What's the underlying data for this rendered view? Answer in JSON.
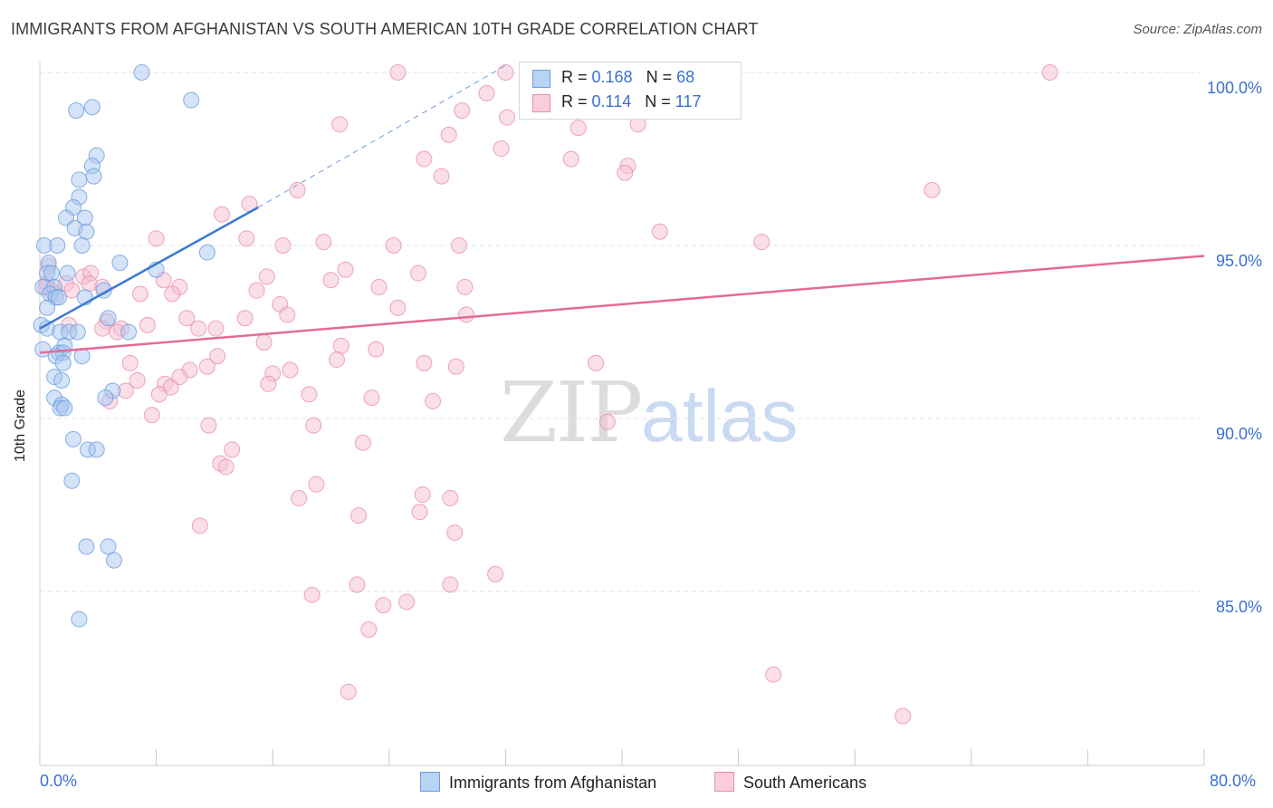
{
  "title": "IMMIGRANTS FROM AFGHANISTAN VS SOUTH AMERICAN 10TH GRADE CORRELATION CHART",
  "source": "Source: ZipAtlas.com",
  "watermark": {
    "zip": "ZIP",
    "atlas": "atlas"
  },
  "legend_top": {
    "rows": [
      {
        "r_label": "R = ",
        "r_value": "0.168",
        "n_label": "N = ",
        "n_value": "68"
      },
      {
        "r_label": "R = ",
        "r_value": "0.114",
        "n_label": "N = ",
        "n_value": "117"
      }
    ]
  },
  "legend_bottom": {
    "items": [
      {
        "label": "Immigrants from Afghanistan"
      },
      {
        "label": "South Americans"
      }
    ]
  },
  "colors": {
    "blue_fill": "#a9c8f0",
    "blue_stroke": "#6a9de0",
    "blue_line": "#3a78d6",
    "pink_fill": "#f6bfd1",
    "pink_stroke": "#e88fae",
    "pink_line": "#e36b97",
    "grid": "#e6e6e6",
    "axis_label": "#3b6fd0"
  },
  "chart_data": {
    "type": "scatter",
    "title": "IMMIGRANTS FROM AFGHANISTAN VS SOUTH AMERICAN 10TH GRADE CORRELATION CHART",
    "xlabel": "",
    "ylabel": "10th Grade",
    "xlim": [
      0,
      80
    ],
    "ylim": [
      80.5,
      100.6
    ],
    "x_tick_labels": [
      "0.0%",
      "80.0%"
    ],
    "y_ticks": [
      85,
      90,
      95,
      100
    ],
    "y_tick_labels": [
      "85.0%",
      "90.0%",
      "95.0%",
      "100.0%"
    ],
    "grid": true,
    "legend_placement": "top-center",
    "series": [
      {
        "name": "Immigrants from Afghanistan",
        "r": 0.168,
        "n": 68,
        "trend": {
          "x": [
            0,
            15.0
          ],
          "y": [
            92.6,
            96.1
          ],
          "dashed_extension_to": [
            32.0,
            100.2
          ]
        },
        "points": [
          [
            7.0,
            100.0
          ],
          [
            10.4,
            99.2
          ],
          [
            3.6,
            99.0
          ],
          [
            2.5,
            98.9
          ],
          [
            3.9,
            97.6
          ],
          [
            3.6,
            97.3
          ],
          [
            3.7,
            97.0
          ],
          [
            2.7,
            96.9
          ],
          [
            2.7,
            96.4
          ],
          [
            2.3,
            96.1
          ],
          [
            1.8,
            95.8
          ],
          [
            3.1,
            95.8
          ],
          [
            2.4,
            95.5
          ],
          [
            3.2,
            95.4
          ],
          [
            0.3,
            95.0
          ],
          [
            1.2,
            95.0
          ],
          [
            2.9,
            95.0
          ],
          [
            11.5,
            94.8
          ],
          [
            0.6,
            94.5
          ],
          [
            5.5,
            94.5
          ],
          [
            0.5,
            94.2
          ],
          [
            0.8,
            94.2
          ],
          [
            1.9,
            94.2
          ],
          [
            8.0,
            94.3
          ],
          [
            0.2,
            93.8
          ],
          [
            1.0,
            93.8
          ],
          [
            4.4,
            93.7
          ],
          [
            0.7,
            93.6
          ],
          [
            1.1,
            93.5
          ],
          [
            1.3,
            93.5
          ],
          [
            3.1,
            93.5
          ],
          [
            0.5,
            93.2
          ],
          [
            4.7,
            92.9
          ],
          [
            0.1,
            92.7
          ],
          [
            0.5,
            92.6
          ],
          [
            1.4,
            92.5
          ],
          [
            2.0,
            92.5
          ],
          [
            2.6,
            92.5
          ],
          [
            6.1,
            92.5
          ],
          [
            1.7,
            92.1
          ],
          [
            0.2,
            92.0
          ],
          [
            1.3,
            91.9
          ],
          [
            1.6,
            91.9
          ],
          [
            1.1,
            91.8
          ],
          [
            2.9,
            91.8
          ],
          [
            1.6,
            91.6
          ],
          [
            1.0,
            91.2
          ],
          [
            1.5,
            91.1
          ],
          [
            5.0,
            90.8
          ],
          [
            4.5,
            90.6
          ],
          [
            1.0,
            90.6
          ],
          [
            1.5,
            90.4
          ],
          [
            1.4,
            90.3
          ],
          [
            1.7,
            90.3
          ],
          [
            2.3,
            89.4
          ],
          [
            3.3,
            89.1
          ],
          [
            3.9,
            89.1
          ],
          [
            2.2,
            88.2
          ],
          [
            3.2,
            86.3
          ],
          [
            4.7,
            86.3
          ],
          [
            5.1,
            85.9
          ],
          [
            2.7,
            84.2
          ]
        ]
      },
      {
        "name": "South Americans",
        "r": 0.114,
        "n": 117,
        "trend": {
          "x": [
            0,
            80
          ],
          "y": [
            91.9,
            94.7
          ]
        },
        "points": [
          [
            24.6,
            100.0
          ],
          [
            32.0,
            100.0
          ],
          [
            69.4,
            100.0
          ],
          [
            38.6,
            99.9
          ],
          [
            30.7,
            99.4
          ],
          [
            29.0,
            98.9
          ],
          [
            32.1,
            98.7
          ],
          [
            37.0,
            98.4
          ],
          [
            20.6,
            98.5
          ],
          [
            41.1,
            98.5
          ],
          [
            28.1,
            98.2
          ],
          [
            31.7,
            97.8
          ],
          [
            26.4,
            97.5
          ],
          [
            36.5,
            97.5
          ],
          [
            40.4,
            97.3
          ],
          [
            40.2,
            97.1
          ],
          [
            27.6,
            97.0
          ],
          [
            17.7,
            96.6
          ],
          [
            61.3,
            96.6
          ],
          [
            14.4,
            96.2
          ],
          [
            12.5,
            95.9
          ],
          [
            42.6,
            95.4
          ],
          [
            8.0,
            95.2
          ],
          [
            14.2,
            95.2
          ],
          [
            19.5,
            95.1
          ],
          [
            49.6,
            95.1
          ],
          [
            16.7,
            95.0
          ],
          [
            24.3,
            95.0
          ],
          [
            28.8,
            95.0
          ],
          [
            0.6,
            94.4
          ],
          [
            21.0,
            94.3
          ],
          [
            26.0,
            94.2
          ],
          [
            15.6,
            94.1
          ],
          [
            3.0,
            94.1
          ],
          [
            3.5,
            94.2
          ],
          [
            8.5,
            94.0
          ],
          [
            20.0,
            94.0
          ],
          [
            0.5,
            93.9
          ],
          [
            1.8,
            93.9
          ],
          [
            3.4,
            93.9
          ],
          [
            23.3,
            93.8
          ],
          [
            0.8,
            93.7
          ],
          [
            2.2,
            93.7
          ],
          [
            0.4,
            93.8
          ],
          [
            9.6,
            93.8
          ],
          [
            4.3,
            93.8
          ],
          [
            29.2,
            93.8
          ],
          [
            14.9,
            93.7
          ],
          [
            6.9,
            93.6
          ],
          [
            9.1,
            93.6
          ],
          [
            1.0,
            93.6
          ],
          [
            16.5,
            93.3
          ],
          [
            24.6,
            93.2
          ],
          [
            17.0,
            93.0
          ],
          [
            10.1,
            92.9
          ],
          [
            14.1,
            92.9
          ],
          [
            29.3,
            93.0
          ],
          [
            4.6,
            92.8
          ],
          [
            2.0,
            92.7
          ],
          [
            7.4,
            92.7
          ],
          [
            5.6,
            92.6
          ],
          [
            10.9,
            92.6
          ],
          [
            4.3,
            92.6
          ],
          [
            12.1,
            92.6
          ],
          [
            5.3,
            92.5
          ],
          [
            15.4,
            92.2
          ],
          [
            20.7,
            92.1
          ],
          [
            23.1,
            92.0
          ],
          [
            12.2,
            91.8
          ],
          [
            20.4,
            91.7
          ],
          [
            26.4,
            91.6
          ],
          [
            28.6,
            91.5
          ],
          [
            38.2,
            91.6
          ],
          [
            6.2,
            91.6
          ],
          [
            11.5,
            91.5
          ],
          [
            10.3,
            91.4
          ],
          [
            17.2,
            91.4
          ],
          [
            16.0,
            91.3
          ],
          [
            9.6,
            91.2
          ],
          [
            6.7,
            91.1
          ],
          [
            8.6,
            91.0
          ],
          [
            15.7,
            91.0
          ],
          [
            9.0,
            90.9
          ],
          [
            8.2,
            90.7
          ],
          [
            5.9,
            90.8
          ],
          [
            18.5,
            90.7
          ],
          [
            22.8,
            90.6
          ],
          [
            4.8,
            90.5
          ],
          [
            27.0,
            90.5
          ],
          [
            7.7,
            90.1
          ],
          [
            39.0,
            89.9
          ],
          [
            11.6,
            89.8
          ],
          [
            18.8,
            89.8
          ],
          [
            22.2,
            89.3
          ],
          [
            13.2,
            89.1
          ],
          [
            12.4,
            88.7
          ],
          [
            12.8,
            88.6
          ],
          [
            19.0,
            88.1
          ],
          [
            26.3,
            87.8
          ],
          [
            17.8,
            87.7
          ],
          [
            28.2,
            87.7
          ],
          [
            26.1,
            87.3
          ],
          [
            21.9,
            87.2
          ],
          [
            11.0,
            86.9
          ],
          [
            28.5,
            86.7
          ],
          [
            31.3,
            85.5
          ],
          [
            21.8,
            85.2
          ],
          [
            28.2,
            85.2
          ],
          [
            18.7,
            84.9
          ],
          [
            25.2,
            84.7
          ],
          [
            23.6,
            84.6
          ],
          [
            22.6,
            83.9
          ],
          [
            50.4,
            82.6
          ],
          [
            21.2,
            82.1
          ],
          [
            59.3,
            81.4
          ]
        ]
      }
    ]
  }
}
